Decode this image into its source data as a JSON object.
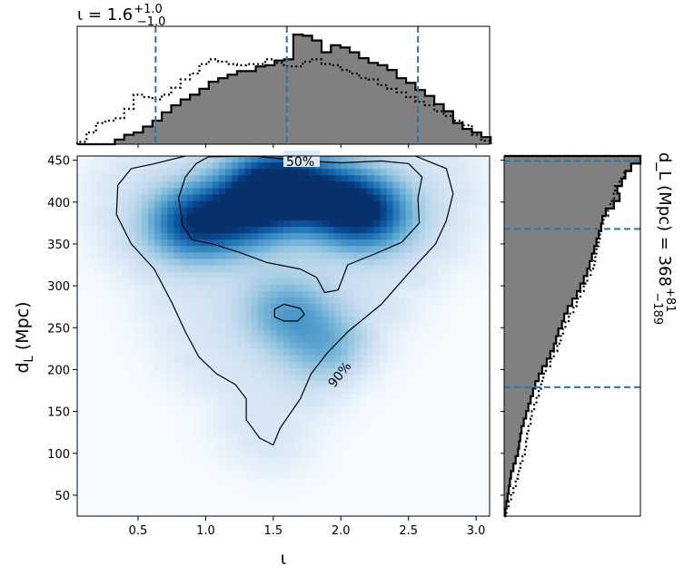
{
  "chart_data": [
    {
      "type": "heatmap",
      "panel": "joint",
      "xlabel": "ι",
      "ylabel": "d_L (Mpc)",
      "xlim": [
        0.05,
        3.1
      ],
      "ylim": [
        25,
        455
      ],
      "xticks": [
        0.5,
        1.0,
        1.5,
        2.0,
        2.5,
        3.0
      ],
      "xtick_labels": [
        "0.5",
        "1.0",
        "1.5",
        "2.0",
        "2.5",
        "3.0"
      ],
      "yticks": [
        50,
        100,
        150,
        200,
        250,
        300,
        350,
        400,
        450
      ],
      "ytick_labels": [
        "50",
        "100",
        "150",
        "200",
        "250",
        "300",
        "350",
        "400",
        "450"
      ],
      "colormap": "Blues",
      "density_peaks": [
        {
          "x": 1.5,
          "y": 420,
          "weight": 1.0
        },
        {
          "x": 0.9,
          "y": 375,
          "weight": 0.85
        },
        {
          "x": 2.2,
          "y": 385,
          "weight": 0.85
        },
        {
          "x": 1.3,
          "y": 385,
          "weight": 0.6
        },
        {
          "x": 1.9,
          "y": 405,
          "weight": 0.7
        },
        {
          "x": 1.6,
          "y": 270,
          "weight": 0.45
        },
        {
          "x": 1.9,
          "y": 225,
          "weight": 0.35
        }
      ],
      "contours": [
        {
          "label": "50%",
          "points": [
            [
              1.02,
              454
            ],
            [
              1.35,
              455
            ],
            [
              1.55,
              452
            ],
            [
              1.75,
              449
            ],
            [
              2.0,
              447
            ],
            [
              2.3,
              449
            ],
            [
              2.5,
              446
            ],
            [
              2.6,
              430
            ],
            [
              2.57,
              405
            ],
            [
              2.58,
              375
            ],
            [
              2.45,
              352
            ],
            [
              2.25,
              338
            ],
            [
              2.05,
              325
            ],
            [
              1.98,
              295
            ],
            [
              1.88,
              292
            ],
            [
              1.82,
              310
            ],
            [
              1.7,
              320
            ],
            [
              1.45,
              328
            ],
            [
              1.25,
              340
            ],
            [
              1.05,
              350
            ],
            [
              0.9,
              355
            ],
            [
              0.83,
              372
            ],
            [
              0.8,
              405
            ],
            [
              0.85,
              430
            ],
            [
              0.93,
              446
            ],
            [
              1.02,
              454
            ]
          ]
        },
        {
          "label": "90%",
          "points": [
            [
              0.6,
              445
            ],
            [
              0.85,
              455
            ],
            [
              1.45,
              458
            ],
            [
              1.8,
              455
            ],
            [
              2.2,
              455
            ],
            [
              2.55,
              455
            ],
            [
              2.78,
              440
            ],
            [
              2.83,
              410
            ],
            [
              2.78,
              378
            ],
            [
              2.7,
              350
            ],
            [
              2.5,
              315
            ],
            [
              2.3,
              278
            ],
            [
              2.05,
              245
            ],
            [
              1.9,
              220
            ],
            [
              1.78,
              195
            ],
            [
              1.7,
              165
            ],
            [
              1.55,
              130
            ],
            [
              1.5,
              110
            ],
            [
              1.4,
              118
            ],
            [
              1.3,
              140
            ],
            [
              1.3,
              165
            ],
            [
              1.22,
              182
            ],
            [
              1.08,
              195
            ],
            [
              0.95,
              215
            ],
            [
              0.85,
              245
            ],
            [
              0.75,
              280
            ],
            [
              0.62,
              320
            ],
            [
              0.45,
              350
            ],
            [
              0.34,
              385
            ],
            [
              0.35,
              420
            ],
            [
              0.45,
              440
            ],
            [
              0.6,
              445
            ]
          ]
        },
        {
          "label": "",
          "points": [
            [
              1.58,
              278
            ],
            [
              1.7,
              273
            ],
            [
              1.73,
              266
            ],
            [
              1.68,
              258
            ],
            [
              1.58,
              258
            ],
            [
              1.51,
              263
            ],
            [
              1.51,
              272
            ],
            [
              1.58,
              278
            ]
          ]
        }
      ]
    },
    {
      "type": "area",
      "panel": "marginal-top",
      "title": "ι = 1.6",
      "title_sup": "+1.0",
      "title_sub": "−1.0",
      "bins_x_start": 0.05,
      "bins_x_end": 3.1,
      "bin_width": 0.0695,
      "series": [
        {
          "style": "filled-step",
          "values": [
            0,
            0,
            0,
            0,
            4,
            8,
            10,
            15,
            20,
            27,
            33,
            38,
            42,
            47,
            53,
            56,
            59,
            62,
            62,
            66,
            67,
            71,
            72,
            93,
            92,
            88,
            78,
            84,
            82,
            78,
            73,
            69,
            67,
            63,
            56,
            52,
            46,
            41,
            34,
            28,
            18,
            13,
            10,
            6
          ]
        },
        {
          "style": "dotted-step",
          "values": [
            2,
            10,
            18,
            20,
            22,
            30,
            42,
            40,
            38,
            42,
            48,
            55,
            60,
            68,
            72,
            70,
            68,
            67,
            68,
            68,
            72,
            69,
            66,
            66,
            70,
            72,
            68,
            67,
            63,
            60,
            56,
            55,
            50,
            47,
            44,
            40,
            36,
            33,
            28,
            24,
            20,
            16,
            8,
            3
          ]
        }
      ],
      "vlines": [
        0.63,
        1.6,
        2.57
      ]
    },
    {
      "type": "area",
      "panel": "marginal-right",
      "title": "d_L (Mpc) = 368",
      "title_sup": "+81",
      "title_sub": "−189",
      "bins_y_start": 25,
      "bins_y_end": 455,
      "series": [
        {
          "style": "filled-step",
          "values": [
            1,
            2,
            3,
            4,
            5,
            6,
            8,
            10,
            12,
            13,
            14,
            15,
            17,
            19,
            21,
            23,
            25,
            27,
            30,
            33,
            37,
            40,
            43,
            45,
            47,
            50,
            52,
            55,
            59,
            63,
            66,
            69,
            72,
            74,
            76,
            78,
            80,
            82,
            84,
            85,
            88,
            95,
            100,
            98,
            102,
            105,
            110,
            118
          ]
        },
        {
          "style": "dotted-step",
          "values": [
            2,
            4,
            6,
            8,
            10,
            12,
            14,
            16,
            18,
            19,
            20,
            21,
            23,
            24,
            26,
            28,
            30,
            32,
            34,
            36,
            40,
            43,
            46,
            49,
            51,
            53,
            56,
            60,
            63,
            66,
            69,
            72,
            75,
            78,
            79,
            80,
            82,
            83,
            84,
            86,
            90,
            92,
            95,
            96,
            100,
            104,
            110,
            118
          ]
        }
      ],
      "hlines": [
        179,
        368,
        449
      ]
    }
  ],
  "contour_label_texts": [
    "50%",
    "90%"
  ]
}
